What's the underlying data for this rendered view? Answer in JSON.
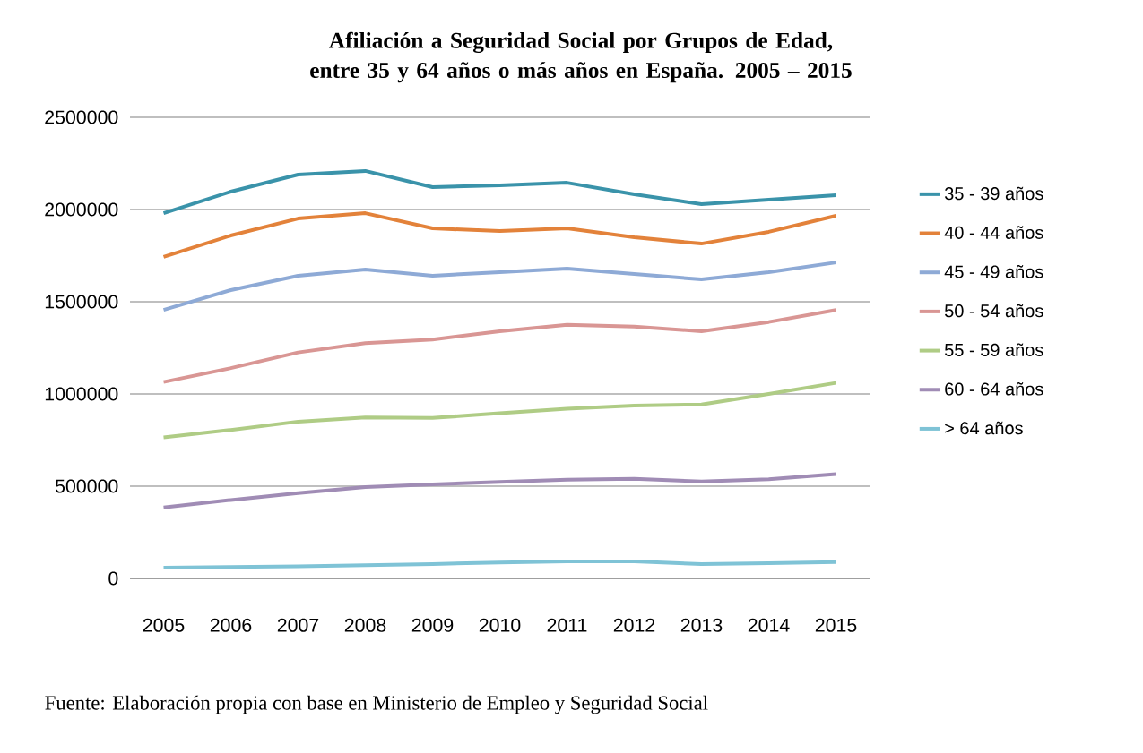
{
  "chart_data": {
    "type": "line",
    "title": "Afiliación a Seguridad Social por Grupos de Edad, entre 35 y 64 años o más años en España. 2005 – 2015",
    "categories": [
      "2005",
      "2006",
      "2007",
      "2008",
      "2009",
      "2010",
      "2011",
      "2012",
      "2013",
      "2014",
      "2015"
    ],
    "series": [
      {
        "name": "35 - 39 años",
        "color": "#3a93aa",
        "values": [
          1980000,
          2097000,
          2189000,
          2209000,
          2121000,
          2131000,
          2145000,
          2082000,
          2029000,
          2053000,
          2078000
        ]
      },
      {
        "name": "40 - 44 años",
        "color": "#e3823a",
        "values": [
          1743000,
          1859000,
          1951000,
          1980000,
          1898000,
          1883000,
          1898000,
          1849000,
          1815000,
          1879000,
          1966000
        ]
      },
      {
        "name": "45 - 49 años",
        "color": "#8eaad6",
        "values": [
          1456000,
          1563000,
          1641000,
          1675000,
          1641000,
          1660000,
          1679000,
          1650000,
          1621000,
          1660000,
          1713000
        ]
      },
      {
        "name": "50 - 54 años",
        "color": "#d99694",
        "values": [
          1065000,
          1140000,
          1225000,
          1275000,
          1295000,
          1340000,
          1375000,
          1365000,
          1340000,
          1390000,
          1455000
        ]
      },
      {
        "name": "55 - 59 años",
        "color": "#afcc85",
        "values": [
          765000,
          805000,
          850000,
          872000,
          870000,
          895000,
          920000,
          937000,
          943000,
          1000000,
          1060000
        ]
      },
      {
        "name": "60 - 64 años",
        "color": "#a08cb5",
        "values": [
          385000,
          425000,
          462000,
          495000,
          510000,
          523000,
          535000,
          540000,
          525000,
          538000,
          565000
        ]
      },
      {
        "name": "> 64 años",
        "color": "#7fc3d6",
        "values": [
          58000,
          62000,
          66000,
          72000,
          78000,
          86000,
          92000,
          92000,
          78000,
          82000,
          88000
        ]
      }
    ],
    "ylim": [
      0,
      2500000
    ],
    "yticks": [
      0,
      500000,
      1000000,
      1500000,
      2000000,
      2500000
    ],
    "grid": "y",
    "legend": "right",
    "marker": "none",
    "line_style": "solid",
    "annotations": [
      "Fuente: Elaboración propia con base en Ministerio de Empleo y Seguridad Social"
    ]
  }
}
